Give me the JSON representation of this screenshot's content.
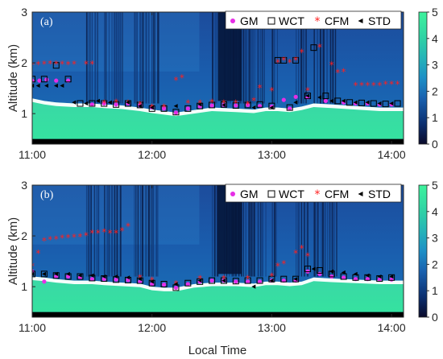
{
  "chart_data": [
    {
      "type": "heatmap",
      "panel_label": "(a)",
      "ylabel": "Altitude (km)",
      "xlabel": "",
      "x_ticks": [
        "11:00",
        "12:00",
        "13:00",
        "14:00"
      ],
      "y_ticks": [
        "1",
        "2",
        "3"
      ],
      "xlim_hours": [
        11.0,
        14.1
      ],
      "ylim": [
        0.4,
        3.0
      ],
      "colorbar": {
        "min": 0,
        "max": 5,
        "ticks": [
          "0",
          "1",
          "2",
          "3",
          "4",
          "5"
        ]
      },
      "cloud_base_profile": {
        "x": [
          11.0,
          11.1,
          11.2,
          11.35,
          11.5,
          11.6,
          11.75,
          11.9,
          12.0,
          12.1,
          12.2,
          12.35,
          12.5,
          12.7,
          12.85,
          12.95,
          13.05,
          13.15,
          13.25,
          13.35,
          13.5,
          13.7,
          13.9,
          14.1
        ],
        "y": [
          1.3,
          1.25,
          1.22,
          1.2,
          1.2,
          1.18,
          1.16,
          1.12,
          1.08,
          1.05,
          1.02,
          1.07,
          1.12,
          1.1,
          1.08,
          1.12,
          1.12,
          1.1,
          1.14,
          1.2,
          1.18,
          1.15,
          1.12,
          1.12
        ]
      },
      "legend": [
        "GM",
        "WCT",
        "CFM",
        "STD"
      ],
      "series": [
        {
          "name": "GM",
          "x": [
            11.0,
            11.06,
            11.12,
            11.2,
            11.3,
            11.5,
            11.6,
            11.7,
            11.8,
            11.9,
            12.0,
            12.1,
            12.2,
            12.3,
            12.4,
            12.5,
            12.6,
            12.7,
            12.8,
            12.9,
            13.0,
            13.1,
            13.15,
            13.2,
            13.3,
            13.45,
            13.6,
            13.7,
            13.8,
            13.9,
            14.0
          ],
          "y": [
            1.65,
            1.65,
            1.67,
            1.65,
            1.65,
            1.18,
            1.2,
            1.18,
            1.2,
            1.16,
            1.12,
            1.1,
            1.02,
            1.1,
            1.14,
            1.16,
            1.17,
            1.16,
            1.17,
            1.15,
            1.14,
            1.27,
            1.1,
            1.33,
            1.32,
            1.25,
            1.22,
            1.2,
            1.2,
            1.18,
            1.18
          ]
        },
        {
          "name": "WCT",
          "x": [
            11.0,
            11.1,
            11.2,
            11.3,
            11.4,
            11.5,
            11.6,
            11.7,
            11.8,
            11.9,
            12.0,
            12.1,
            12.2,
            12.3,
            12.4,
            12.5,
            12.6,
            12.7,
            12.8,
            12.9,
            13.0,
            13.05,
            13.1,
            13.15,
            13.2,
            13.3,
            13.35,
            13.45,
            13.55,
            13.65,
            13.75,
            13.85,
            13.95,
            14.05
          ],
          "y": [
            1.68,
            1.68,
            1.95,
            1.68,
            1.2,
            1.2,
            1.2,
            1.18,
            1.2,
            1.17,
            1.1,
            1.1,
            1.03,
            1.1,
            1.15,
            1.17,
            1.18,
            1.16,
            1.17,
            1.18,
            1.15,
            2.05,
            2.05,
            1.12,
            2.05,
            1.35,
            2.3,
            1.35,
            1.25,
            1.22,
            1.21,
            1.2,
            1.19,
            1.2
          ]
        },
        {
          "name": "CFM",
          "x": [
            11.0,
            11.05,
            11.1,
            11.15,
            11.2,
            11.25,
            11.3,
            11.35,
            11.45,
            11.5,
            11.6,
            11.7,
            11.8,
            11.9,
            12.0,
            12.1,
            12.2,
            12.25,
            12.3,
            12.4,
            12.5,
            12.6,
            12.7,
            12.8,
            12.85,
            12.9,
            13.0,
            13.05,
            13.1,
            13.15,
            13.2,
            13.25,
            13.3,
            13.4,
            13.5,
            13.55,
            13.6,
            13.7,
            13.75,
            13.8,
            13.85,
            13.9,
            13.95,
            14.0,
            14.05
          ],
          "y": [
            1.95,
            1.96,
            1.97,
            1.98,
            1.97,
            1.97,
            1.96,
            1.97,
            1.97,
            1.97,
            1.2,
            1.22,
            1.2,
            1.18,
            1.12,
            1.12,
            1.65,
            1.7,
            1.2,
            1.2,
            1.22,
            1.2,
            1.2,
            1.18,
            1.25,
            1.5,
            1.45,
            2.0,
            2.05,
            2.0,
            2.05,
            2.2,
            1.45,
            2.3,
            1.95,
            1.8,
            1.82,
            1.55,
            1.55,
            1.55,
            1.55,
            1.55,
            1.57,
            1.57,
            1.57
          ]
        },
        {
          "name": "STD",
          "x": [
            11.0,
            11.05,
            11.12,
            11.2,
            11.25,
            11.35,
            11.45,
            11.55,
            11.65,
            11.8,
            11.9,
            12.0,
            12.2,
            12.4,
            12.6,
            12.85,
            13.0,
            13.2,
            13.3,
            13.4,
            13.5,
            13.6,
            13.7,
            13.8,
            13.9,
            14.0
          ],
          "y": [
            1.55,
            1.55,
            1.55,
            1.55,
            1.55,
            1.22,
            1.2,
            1.25,
            1.22,
            1.22,
            1.15,
            1.12,
            1.15,
            1.18,
            1.17,
            1.12,
            1.12,
            1.22,
            1.35,
            1.32,
            1.25,
            1.25,
            1.22,
            1.22,
            1.2,
            1.2
          ]
        }
      ]
    },
    {
      "type": "heatmap",
      "panel_label": "(b)",
      "ylabel": "Altitude (km)",
      "xlabel": "Local Time",
      "x_ticks": [
        "11:00",
        "12:00",
        "13:00",
        "14:00"
      ],
      "y_ticks": [
        "1",
        "2",
        "3"
      ],
      "xlim_hours": [
        11.0,
        14.1
      ],
      "ylim": [
        0.4,
        3.0
      ],
      "colorbar": {
        "min": 0,
        "max": 5,
        "ticks": [
          "0",
          "1",
          "2",
          "3",
          "4",
          "5"
        ]
      },
      "cloud_base_profile": {
        "x": [
          11.0,
          11.1,
          11.2,
          11.35,
          11.5,
          11.6,
          11.75,
          11.9,
          12.0,
          12.1,
          12.2,
          12.35,
          12.5,
          12.7,
          12.85,
          12.95,
          13.05,
          13.15,
          13.25,
          13.35,
          13.5,
          13.7,
          13.9,
          14.1
        ],
        "y": [
          1.2,
          1.18,
          1.15,
          1.12,
          1.12,
          1.1,
          1.08,
          1.06,
          1.0,
          0.98,
          0.98,
          1.05,
          1.08,
          1.08,
          1.06,
          1.1,
          1.1,
          1.08,
          1.1,
          1.18,
          1.16,
          1.14,
          1.12,
          1.12
        ]
      },
      "legend": [
        "GM",
        "WCT",
        "CFM",
        "STD"
      ],
      "series": [
        {
          "name": "GM",
          "x": [
            11.0,
            11.1,
            11.2,
            11.3,
            11.4,
            11.5,
            11.6,
            11.7,
            11.8,
            11.9,
            12.0,
            12.1,
            12.2,
            12.3,
            12.4,
            12.5,
            12.6,
            12.7,
            12.8,
            12.9,
            13.0,
            13.1,
            13.2,
            13.3,
            13.4,
            13.5,
            13.6,
            13.7,
            13.8,
            13.9,
            14.0
          ],
          "y": [
            1.3,
            1.1,
            1.2,
            1.2,
            1.18,
            1.15,
            1.15,
            1.14,
            1.13,
            1.1,
            1.05,
            1.04,
            0.98,
            1.05,
            1.1,
            1.12,
            1.12,
            1.1,
            1.1,
            1.1,
            1.12,
            1.12,
            1.12,
            1.3,
            1.25,
            1.2,
            1.18,
            1.15,
            1.15,
            1.14,
            1.14
          ]
        },
        {
          "name": "WCT",
          "x": [
            11.0,
            11.1,
            11.2,
            11.3,
            11.4,
            11.5,
            11.6,
            11.7,
            11.8,
            11.9,
            12.0,
            12.1,
            12.2,
            12.3,
            12.4,
            12.5,
            12.6,
            12.7,
            12.8,
            12.9,
            13.0,
            13.1,
            13.2,
            13.3,
            13.4,
            13.5,
            13.6,
            13.7,
            13.8,
            13.9,
            14.0
          ],
          "y": [
            1.25,
            1.25,
            1.22,
            1.2,
            1.2,
            1.17,
            1.16,
            1.14,
            1.13,
            1.12,
            1.07,
            1.05,
            0.98,
            1.07,
            1.1,
            1.12,
            1.12,
            1.11,
            1.12,
            1.12,
            1.15,
            1.15,
            1.15,
            1.35,
            1.32,
            1.25,
            1.2,
            1.18,
            1.18,
            1.16,
            1.18
          ]
        },
        {
          "name": "CFM",
          "x": [
            11.0,
            11.05,
            11.1,
            11.15,
            11.2,
            11.25,
            11.3,
            11.35,
            11.4,
            11.45,
            11.5,
            11.55,
            11.6,
            11.65,
            11.7,
            11.75,
            11.8,
            11.9,
            12.0,
            12.2,
            12.4,
            12.6,
            12.8,
            13.0,
            13.05,
            13.1,
            13.2,
            13.25,
            13.3
          ],
          "y": [
            1.4,
            1.65,
            1.9,
            1.92,
            1.93,
            1.95,
            1.96,
            1.97,
            1.98,
            2.0,
            2.05,
            2.05,
            2.07,
            2.05,
            2.05,
            2.1,
            2.18,
            1.17,
            1.12,
            1.05,
            1.15,
            1.15,
            1.15,
            1.2,
            1.4,
            1.45,
            1.65,
            1.75,
            1.6
          ]
        },
        {
          "name": "STD",
          "x": [
            11.0,
            11.1,
            11.2,
            11.3,
            11.4,
            11.5,
            11.6,
            11.7,
            11.8,
            11.9,
            12.0,
            12.2,
            12.4,
            12.6,
            12.85,
            13.0,
            13.2,
            13.35,
            13.5,
            13.6,
            13.7,
            13.8,
            13.9,
            14.0
          ],
          "y": [
            1.25,
            1.25,
            1.25,
            1.25,
            1.22,
            1.22,
            1.2,
            1.2,
            1.18,
            1.15,
            1.1,
            1.05,
            1.12,
            1.12,
            1.0,
            1.12,
            1.15,
            1.35,
            1.3,
            1.28,
            1.25,
            1.22,
            1.2,
            1.2
          ]
        }
      ]
    }
  ]
}
